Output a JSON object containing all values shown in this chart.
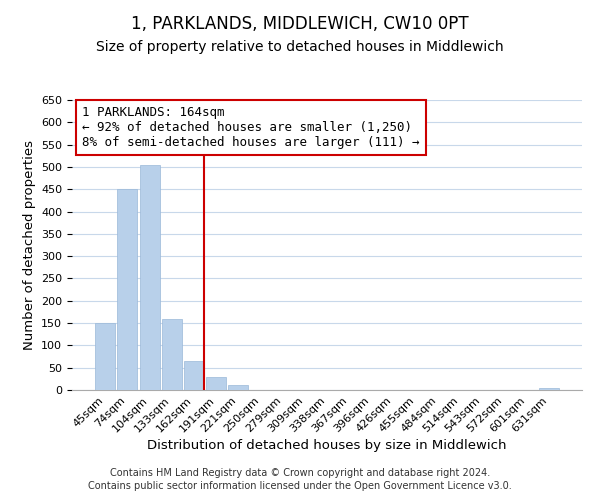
{
  "title": "1, PARKLANDS, MIDDLEWICH, CW10 0PT",
  "subtitle": "Size of property relative to detached houses in Middlewich",
  "xlabel": "Distribution of detached houses by size in Middlewich",
  "ylabel": "Number of detached properties",
  "bar_labels": [
    "45sqm",
    "74sqm",
    "104sqm",
    "133sqm",
    "162sqm",
    "191sqm",
    "221sqm",
    "250sqm",
    "279sqm",
    "309sqm",
    "338sqm",
    "367sqm",
    "396sqm",
    "426sqm",
    "455sqm",
    "484sqm",
    "514sqm",
    "543sqm",
    "572sqm",
    "601sqm",
    "631sqm"
  ],
  "bar_values": [
    150,
    450,
    505,
    160,
    65,
    30,
    12,
    0,
    0,
    0,
    0,
    0,
    0,
    0,
    0,
    0,
    0,
    0,
    0,
    0,
    5
  ],
  "bar_color": "#b8d0ea",
  "bar_edge_color": "#9ab8d8",
  "vline_x_index": 4,
  "vline_color": "#cc0000",
  "ylim": [
    0,
    650
  ],
  "yticks": [
    0,
    50,
    100,
    150,
    200,
    250,
    300,
    350,
    400,
    450,
    500,
    550,
    600,
    650
  ],
  "annotation_line1": "1 PARKLANDS: 164sqm",
  "annotation_line2": "← 92% of detached houses are smaller (1,250)",
  "annotation_line3": "8% of semi-detached houses are larger (111) →",
  "annotation_box_color": "#ffffff",
  "annotation_box_edge": "#cc0000",
  "footer_line1": "Contains HM Land Registry data © Crown copyright and database right 2024.",
  "footer_line2": "Contains public sector information licensed under the Open Government Licence v3.0.",
  "background_color": "#ffffff",
  "grid_color": "#c8d8ea",
  "title_fontsize": 12,
  "subtitle_fontsize": 10,
  "axis_label_fontsize": 9.5,
  "tick_fontsize": 8,
  "footer_fontsize": 7,
  "annotation_fontsize": 9
}
